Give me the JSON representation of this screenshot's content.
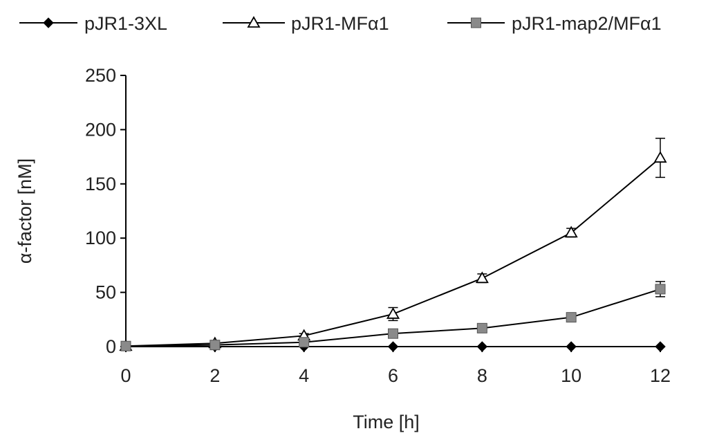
{
  "chart_data": {
    "type": "line",
    "title": "",
    "xlabel": "Time [h]",
    "ylabel": "α-factor [nM]",
    "x": [
      0,
      2,
      4,
      6,
      8,
      10,
      12
    ],
    "x_ticks": [
      "0",
      "2",
      "4",
      "6",
      "8",
      "10",
      "12"
    ],
    "y_ticks": [
      "0",
      "50",
      "100",
      "150",
      "200",
      "250"
    ],
    "xlim": [
      0,
      12
    ],
    "ylim": [
      0,
      250
    ],
    "grid": false,
    "legend_position": "top",
    "series": [
      {
        "name": "pJR1-3XL",
        "marker": "diamond",
        "color": "#000000",
        "values": [
          0,
          0,
          0,
          0,
          0,
          0,
          0
        ],
        "errors": [
          0,
          0,
          0,
          0,
          0,
          0,
          0
        ]
      },
      {
        "name": "pJR1-MFα1",
        "marker": "triangle-open",
        "color": "#000000",
        "values": [
          0.5,
          3,
          10,
          30,
          63,
          105,
          174
        ],
        "errors": [
          0,
          1,
          2,
          6,
          4,
          4,
          18
        ]
      },
      {
        "name": "pJR1-map2/MFα1",
        "marker": "square",
        "color": "#7f7f7f",
        "values": [
          0.5,
          1.5,
          4,
          12,
          17,
          27,
          53
        ],
        "errors": [
          0,
          1,
          1,
          3,
          3,
          4,
          7
        ]
      }
    ]
  }
}
